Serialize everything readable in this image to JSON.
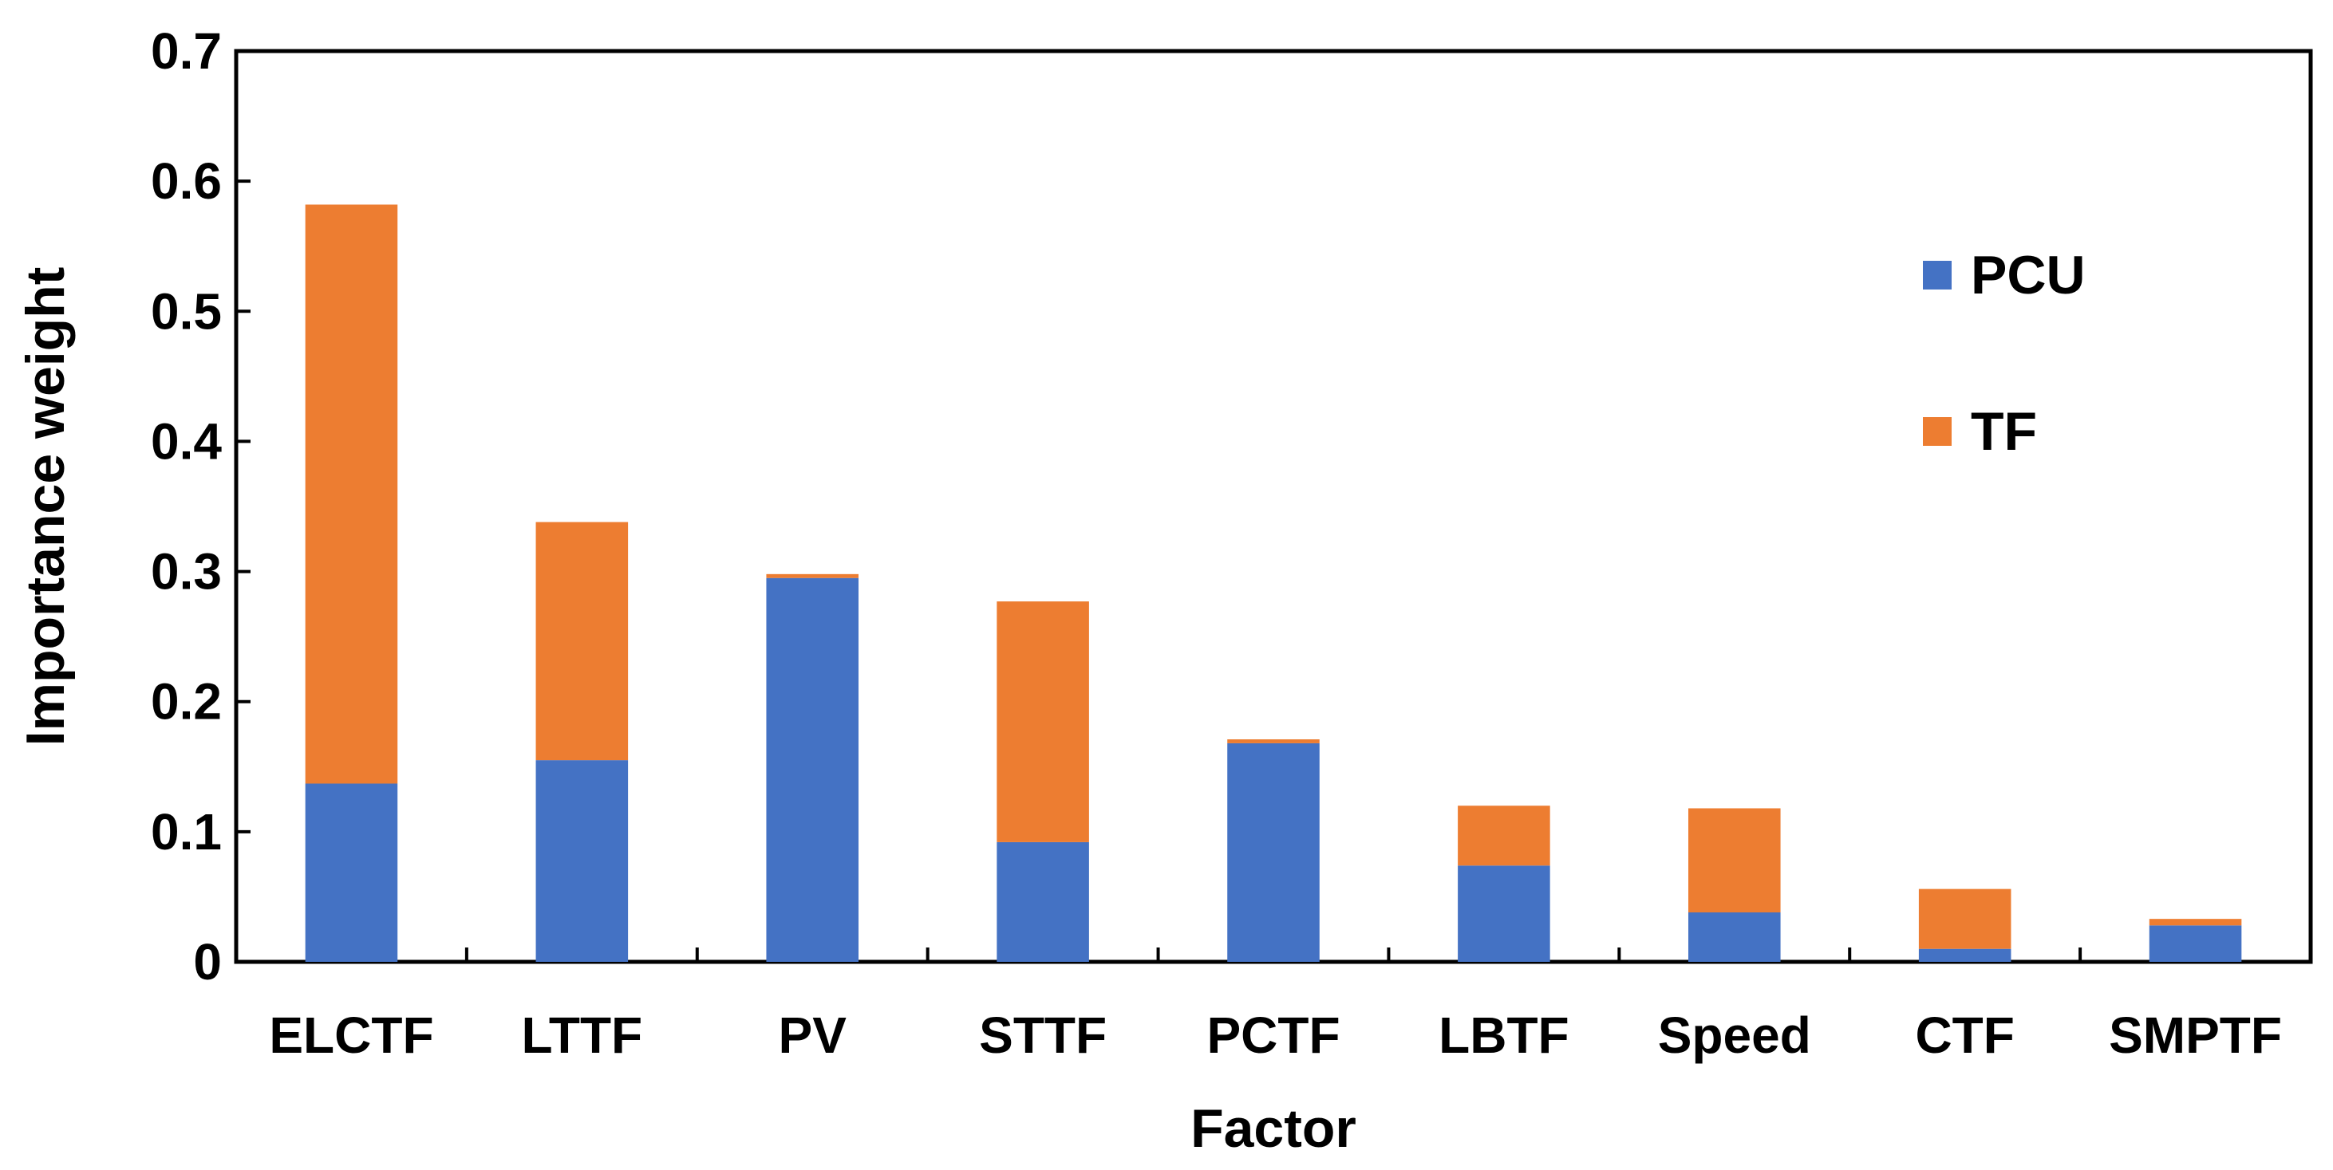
{
  "chart_data": {
    "type": "bar",
    "stacked": true,
    "title": "",
    "xlabel": "Factor",
    "ylabel": "Importance weight",
    "ylim": [
      0,
      0.7
    ],
    "yticks": [
      0,
      0.1,
      0.2,
      0.3,
      0.4,
      0.5,
      0.6,
      0.7
    ],
    "ytick_labels": [
      "0",
      "0.1",
      "0.2",
      "0.3",
      "0.4",
      "0.5",
      "0.6",
      "0.7"
    ],
    "categories": [
      "ELCTF",
      "LTTF",
      "PV",
      "STTF",
      "PCTF",
      "LBTF",
      "Speed",
      "CTF",
      "SMPTF"
    ],
    "series": [
      {
        "name": "PCU",
        "color": "#4472C4",
        "values": [
          0.137,
          0.155,
          0.295,
          0.092,
          0.168,
          0.074,
          0.038,
          0.01,
          0.028
        ]
      },
      {
        "name": "TF",
        "color": "#ED7D31",
        "values": [
          0.445,
          0.183,
          0.003,
          0.185,
          0.003,
          0.046,
          0.08,
          0.046,
          0.005
        ]
      }
    ],
    "legend_position": "top-right",
    "grid": false
  }
}
